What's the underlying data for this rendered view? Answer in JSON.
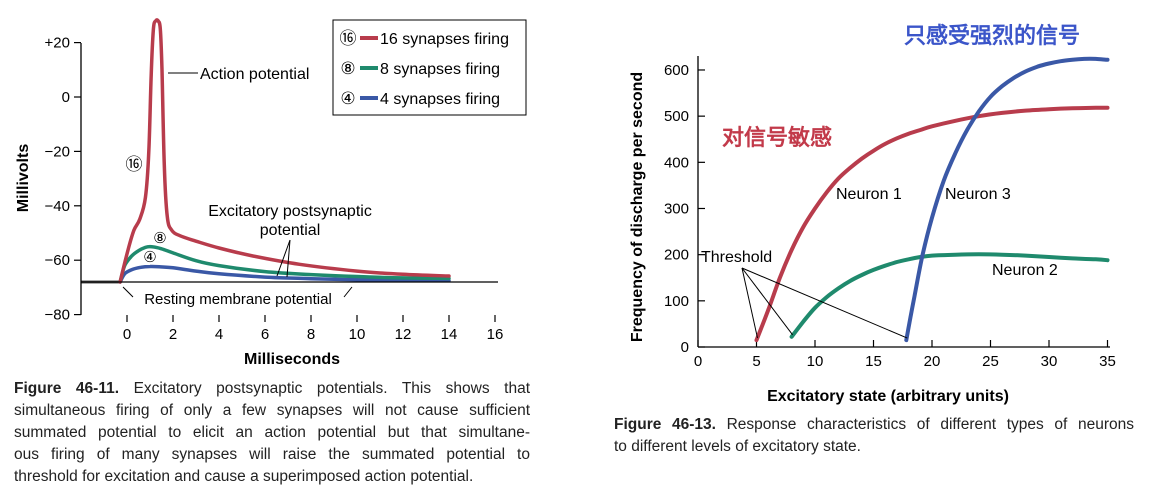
{
  "chart_data": [
    {
      "type": "line",
      "id": "figure-46-11",
      "xlabel": "Milliseconds",
      "ylabel": "Millivolts",
      "xlim": [
        -4,
        16
      ],
      "ylim": [
        -80,
        25
      ],
      "x_ticks": [
        0,
        2,
        4,
        6,
        8,
        10,
        12,
        14,
        16
      ],
      "x_tick_labels": [
        "0",
        "2",
        "4",
        "6",
        "8",
        "10",
        "12",
        "14",
        "16"
      ],
      "y_ticks": [
        20,
        0,
        -20,
        -40,
        -60,
        -80
      ],
      "y_tick_labels": [
        "+20",
        "0",
        "−20",
        "−40",
        "−60",
        "−80"
      ],
      "resting_potential_mv": -68,
      "legend": {
        "placement": "top-right",
        "items": [
          {
            "symbol": "⑯",
            "label": "16 synapses firing",
            "color": "#b83c4c"
          },
          {
            "symbol": "⑧",
            "label": "8 synapses firing",
            "color": "#1f8a6d"
          },
          {
            "symbol": "④",
            "label": "4 synapses firing",
            "color": "#3a58a6"
          }
        ]
      },
      "series": [
        {
          "name": "16 synapses firing",
          "color": "#b83c4c",
          "x": [
            -0.3,
            0.05,
            0.3,
            0.55,
            0.8,
            0.95,
            1.05,
            1.15,
            1.25,
            1.35,
            1.45,
            1.52,
            1.62,
            1.75,
            1.95,
            2.3,
            3.0,
            4.0,
            5.5,
            7.5,
            10,
            12,
            14
          ],
          "y": [
            -68,
            -56,
            -49,
            -45,
            -37,
            -20,
            8,
            25,
            28,
            28,
            25,
            10,
            -25,
            -44,
            -49,
            -51,
            -53,
            -55.5,
            -58.5,
            -61.5,
            -64,
            -65.2,
            -65.8
          ]
        },
        {
          "name": "8 synapses firing",
          "color": "#1f8a6d",
          "x": [
            -0.3,
            -0.1,
            0.2,
            0.5,
            0.8,
            1.0,
            1.2,
            1.5,
            2.0,
            3.0,
            4.0,
            6.0,
            8.0,
            10.0,
            12.0,
            14.0
          ],
          "y": [
            -68,
            -62,
            -58.5,
            -56.5,
            -55.3,
            -55,
            -55.2,
            -55.8,
            -57.3,
            -60.2,
            -62,
            -64.2,
            -65.3,
            -66,
            -66.5,
            -66.7
          ]
        },
        {
          "name": "4 synapses firing",
          "color": "#3a58a6",
          "x": [
            -0.3,
            -0.1,
            0.2,
            0.6,
            1.0,
            1.4,
            2.0,
            3.0,
            4.0,
            6.0,
            8.0,
            10.0,
            12.0,
            14.0
          ],
          "y": [
            -68,
            -65,
            -63.5,
            -62.6,
            -62.3,
            -62.4,
            -62.8,
            -64,
            -65,
            -66.2,
            -66.8,
            -67.2,
            -67.4,
            -67.5
          ]
        }
      ],
      "baseline": {
        "x": [
          -4,
          -0.3
        ],
        "y": [
          -68,
          -68
        ],
        "color": "#555555"
      },
      "annotations": {
        "action_potential": "Action potential",
        "epsp_line1": "Excitatory postsynaptic",
        "epsp_line2": "potential",
        "resting": "Resting membrane potential",
        "marker_16": "⑯",
        "marker_8": "⑧",
        "marker_4": "④"
      }
    },
    {
      "type": "line",
      "id": "figure-46-13",
      "xlabel": "Excitatory state (arbitrary units)",
      "ylabel": "Frequency of discharge per second",
      "xlim": [
        0,
        35
      ],
      "ylim": [
        0,
        640
      ],
      "x_ticks": [
        0,
        5,
        10,
        15,
        20,
        25,
        30,
        35
      ],
      "y_ticks": [
        0,
        100,
        200,
        300,
        400,
        500,
        600
      ],
      "series": [
        {
          "name": "Neuron 1",
          "color": "#b83c4c",
          "x": [
            5,
            6,
            7,
            8,
            9,
            10,
            11,
            12,
            13,
            14,
            15,
            16,
            17,
            18,
            19,
            20,
            22,
            24,
            26,
            28,
            30,
            32,
            34,
            35
          ],
          "y": [
            15,
            80,
            150,
            210,
            260,
            300,
            335,
            365,
            388,
            408,
            425,
            440,
            452,
            462,
            470,
            478,
            490,
            500,
            507,
            512,
            515,
            517,
            518,
            518
          ]
        },
        {
          "name": "Neuron 2",
          "color": "#1f8a6d",
          "x": [
            8,
            9,
            10,
            11,
            12,
            13,
            14,
            15,
            16,
            17,
            18,
            19,
            20,
            22,
            24,
            26,
            28,
            30,
            32,
            34,
            35
          ],
          "y": [
            22,
            55,
            85,
            108,
            127,
            143,
            156,
            167,
            176,
            184,
            190,
            195,
            198,
            200,
            201,
            200,
            198,
            195,
            192,
            190,
            188
          ]
        },
        {
          "name": "Neuron 3",
          "color": "#3a58a6",
          "x": [
            17.8,
            18.5,
            19.2,
            20,
            21,
            22,
            23,
            24,
            25,
            26,
            27,
            28,
            29,
            30,
            31,
            32,
            33,
            34,
            35
          ],
          "y": [
            15,
            110,
            200,
            280,
            360,
            420,
            470,
            510,
            542,
            565,
            583,
            597,
            607,
            614,
            619,
            622,
            624,
            624,
            622
          ]
        }
      ],
      "threshold_points": [
        [
          5,
          15
        ],
        [
          8,
          22
        ],
        [
          17.8,
          15
        ]
      ],
      "annotations": {
        "threshold": "Threshold",
        "neuron1": "Neuron 1",
        "neuron2": "Neuron 2",
        "neuron3": "Neuron 3",
        "cn_sensitive": "对信号敏感",
        "cn_strong": "只感受强烈的信号"
      },
      "annotation_colors": {
        "cn_sensitive": "#c23a4a",
        "cn_strong": "#3b55c9"
      }
    }
  ],
  "captions": {
    "fig1_label": "Figure 46-11.",
    "fig1_lines": [
      " Excitatory postsynaptic potentials. This shows that",
      "simultaneous firing of only a few synapses will not cause sufficient",
      "summated potential to elicit an action potential but that simultane-",
      "ous firing of many synapses will raise the summated potential to",
      "threshold for excitation and cause a superimposed action potential."
    ],
    "fig2_label": "Figure 46-13.",
    "fig2_lines": [
      " Response characteristics of different types of neurons",
      "to different levels of excitatory state."
    ]
  }
}
